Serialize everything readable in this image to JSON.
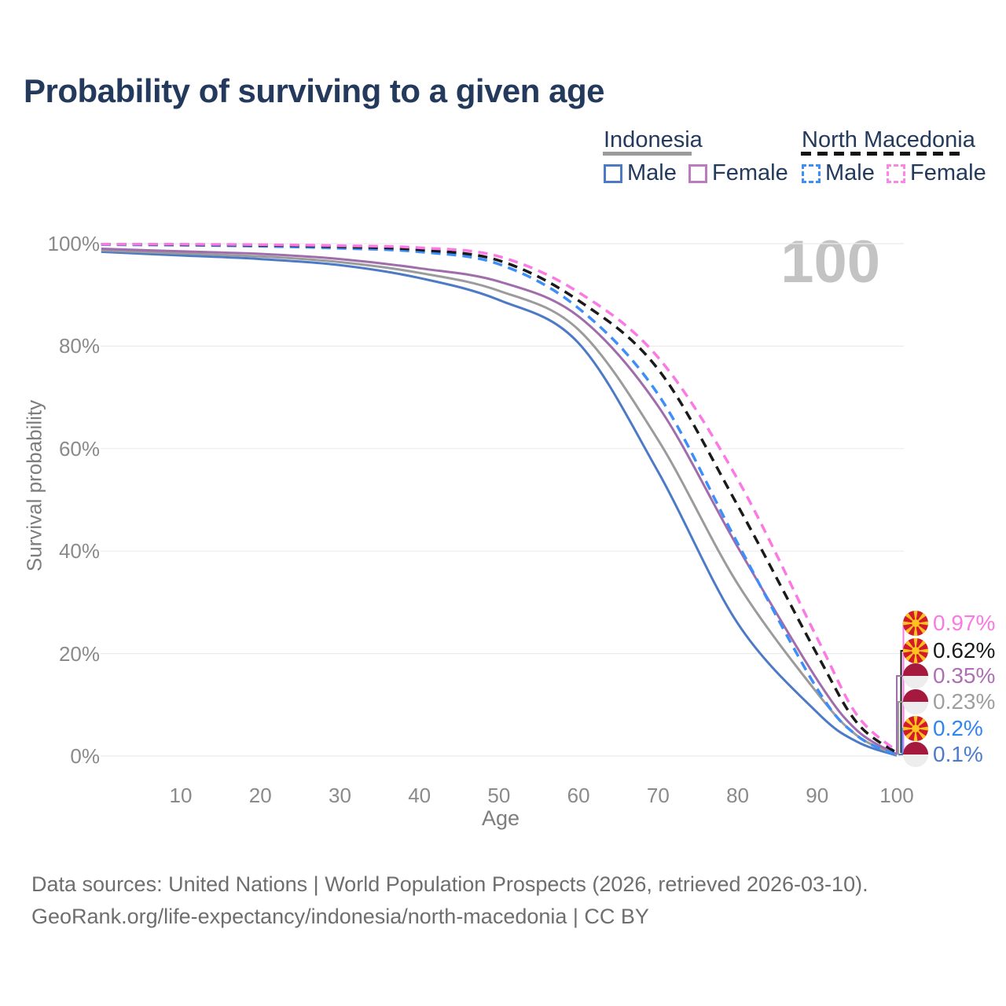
{
  "title": "Probability of surviving to a given age",
  "watermark": "100",
  "legend": {
    "groups": [
      {
        "name": "Indonesia",
        "line_style": "solid",
        "line_color": "#9B9B9B",
        "items": [
          {
            "label": "Male",
            "color": "#4C7AC6",
            "dashed": false
          },
          {
            "label": "Female",
            "color": "#BC7AC0",
            "dashed": false
          }
        ]
      },
      {
        "name": "North Macedonia",
        "line_style": "dashed",
        "line_color": "#141414",
        "items": [
          {
            "label": "Male",
            "color": "#3E8EF7",
            "dashed": true
          },
          {
            "label": "Female",
            "color": "#FC85E8",
            "dashed": true
          }
        ]
      }
    ]
  },
  "axes": {
    "ylabel": "Survival probability",
    "xlabel": "Age",
    "yticks": [
      {
        "label": "0%",
        "value": 0
      },
      {
        "label": "20%",
        "value": 20
      },
      {
        "label": "40%",
        "value": 40
      },
      {
        "label": "60%",
        "value": 60
      },
      {
        "label": "80%",
        "value": 80
      },
      {
        "label": "100%",
        "value": 100
      }
    ],
    "xticks": [
      {
        "label": "10",
        "value": 10
      },
      {
        "label": "20",
        "value": 20
      },
      {
        "label": "30",
        "value": 30
      },
      {
        "label": "40",
        "value": 40
      },
      {
        "label": "50",
        "value": 50
      },
      {
        "label": "60",
        "value": 60
      },
      {
        "label": "70",
        "value": 70
      },
      {
        "label": "80",
        "value": 80
      },
      {
        "label": "90",
        "value": 90
      },
      {
        "label": "100",
        "value": 100
      }
    ]
  },
  "chart_data": {
    "type": "line",
    "title": "Probability of surviving to a given age",
    "xlabel": "Age",
    "ylabel": "Survival probability",
    "xlim": [
      0,
      100
    ],
    "ylim": [
      0,
      100
    ],
    "grid": "horizontal",
    "legend_position": "top-right",
    "x_ages": [
      0,
      10,
      20,
      30,
      40,
      50,
      60,
      70,
      80,
      90,
      95,
      100
    ],
    "series": [
      {
        "name": "Indonesia Male",
        "color": "#4C7AC6",
        "dashed": false,
        "values": [
          98.4,
          97.7,
          97.0,
          95.8,
          93.3,
          89.0,
          80.6,
          55.5,
          25.9,
          8.5,
          2.8,
          0.1
        ],
        "end_label": "0.1%",
        "label_color": "#4A7CCB",
        "flag": "id"
      },
      {
        "name": "Indonesia Both sexes",
        "color": "#9B9B9B",
        "dashed": false,
        "values": [
          98.7,
          98.1,
          97.5,
          96.4,
          94.3,
          90.8,
          83.2,
          61.7,
          33.6,
          12.3,
          4.0,
          0.23
        ],
        "end_label": "0.23%",
        "label_color": "#9E9E9E",
        "flag": "id"
      },
      {
        "name": "Indonesia Female",
        "color": "#A06CAB",
        "dashed": false,
        "values": [
          99.0,
          98.5,
          98.0,
          97.0,
          95.2,
          92.6,
          85.8,
          68.3,
          40.8,
          14.9,
          5.0,
          0.35
        ],
        "end_label": "0.35%",
        "label_color": "#AE6FB5",
        "flag": "id"
      },
      {
        "name": "North Macedonia Male",
        "color": "#3E8EF7",
        "dashed": true,
        "values": [
          99.8,
          99.7,
          99.5,
          99.1,
          98.4,
          96.0,
          87.4,
          70.6,
          41.5,
          13.1,
          4.0,
          0.2
        ],
        "end_label": "0.2%",
        "label_color": "#2F86F2",
        "flag": "mk"
      },
      {
        "name": "North Macedonia Both sexes",
        "color": "#1A1A1A",
        "dashed": true,
        "values": [
          99.9,
          99.8,
          99.7,
          99.4,
          98.8,
          96.7,
          88.9,
          75.5,
          48.9,
          19.8,
          6.5,
          0.62
        ],
        "end_label": "0.62%",
        "label_color": "#1A1A1A",
        "flag": "mk"
      },
      {
        "name": "North Macedonia Female",
        "color": "#FB79E3",
        "dashed": true,
        "values": [
          99.9,
          99.87,
          99.8,
          99.6,
          99.2,
          97.5,
          90.5,
          77.8,
          54.0,
          23.0,
          8.0,
          0.97
        ],
        "end_label": "0.97%",
        "label_color": "#FB79E3",
        "flag": "mk"
      }
    ]
  },
  "footer": {
    "line1": "Data sources: United Nations | World Population Prospects (2026, retrieved 2026-03-10).",
    "line2": "GeoRank.org/life-expectancy/indonesia/north-macedonia | CC BY"
  },
  "flag_colors": {
    "indonesia_red": "#A5193E",
    "indonesia_white": "#EDEDED",
    "macedonia_red": "#D11A2A",
    "macedonia_yellow": "#FFC21E"
  }
}
